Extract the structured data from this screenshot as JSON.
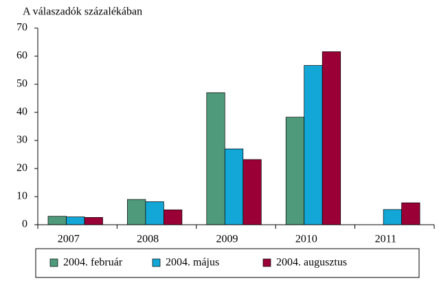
{
  "chart_data": {
    "type": "bar",
    "ylabel": "A válaszadók százalékában",
    "categories": [
      "2007",
      "2008",
      "2009",
      "2010",
      "2011"
    ],
    "series": [
      {
        "name": "2004. február",
        "color": "#4f9a7a",
        "values": [
          3,
          9,
          47,
          38.3,
          null
        ]
      },
      {
        "name": "2004. május",
        "color": "#12a7d6",
        "values": [
          2.8,
          8.2,
          27,
          56.7,
          5.4
        ]
      },
      {
        "name": "2004. augusztus",
        "color": "#9a0036",
        "values": [
          2.6,
          5.3,
          23.2,
          61.6,
          7.8
        ]
      }
    ],
    "ylim": [
      0,
      70
    ],
    "yticks": [
      0,
      10,
      20,
      30,
      40,
      50,
      60,
      70
    ],
    "legend": "bottom"
  }
}
